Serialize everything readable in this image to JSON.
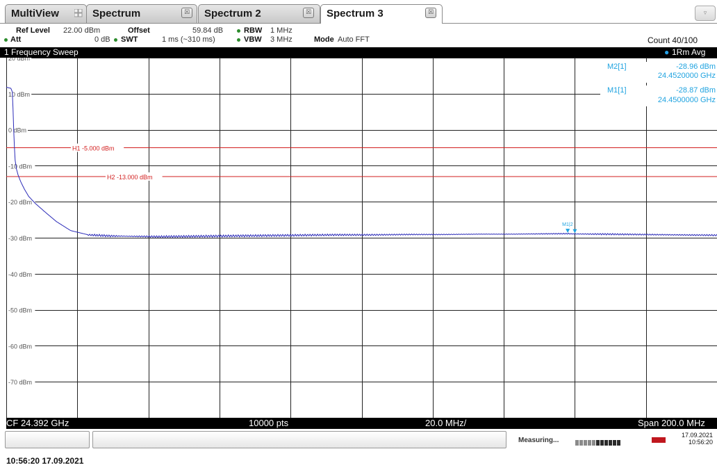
{
  "tabs": [
    {
      "label": "MultiView"
    },
    {
      "label": "Spectrum"
    },
    {
      "label": "Spectrum 2"
    },
    {
      "label": "Spectrum 3"
    }
  ],
  "settings": {
    "ref_level_label": "Ref Level",
    "ref_level_value": "22.00 dBm",
    "offset_label": "Offset",
    "offset_value": "59.84 dB",
    "rbw_label": "RBW",
    "rbw_value": "1 MHz",
    "att_label": "Att",
    "att_value": "0 dB",
    "swt_label": "SWT",
    "swt_value": "1 ms (~310 ms)",
    "vbw_label": "VBW",
    "vbw_value": "3 MHz",
    "mode_label": "Mode",
    "mode_value": "Auto FFT",
    "count": "Count 40/100"
  },
  "diagram": {
    "title": "1 Frequency Sweep",
    "trace_label": "1Rm Avg"
  },
  "markers": [
    {
      "name": "M2[1]",
      "level": "-28.96 dBm",
      "freq": "24.4520000 GHz"
    },
    {
      "name": "M1[1]",
      "level": "-28.87 dBm",
      "freq": "24.4500000 GHz"
    }
  ],
  "marker_tag": "M1|2",
  "lines": [
    {
      "label": "H1 -5.000 dBm",
      "level": -5
    },
    {
      "label": "H2 -13.000 dBm",
      "level": -13
    }
  ],
  "footer": {
    "cf": "CF 24.392 GHz",
    "pts": "10000 pts",
    "div": "20.0 MHz/",
    "span": "Span 200.0 MHz"
  },
  "status": {
    "measuring": "Measuring...",
    "date": "17.09.2021",
    "time": "10:56:20"
  },
  "timestamp": "10:56:20 17.09.2021",
  "colors": {
    "trace": "#2b2bb8",
    "limit_line": "#d21e1e",
    "marker": "#1fa3e0",
    "grid": "#222222"
  },
  "chart_data": {
    "type": "line",
    "title": "1 Frequency Sweep",
    "xlabel": "",
    "ylabel": "",
    "x_center_ghz": 24.392,
    "x_span_mhz": 200.0,
    "xlim_ghz": [
      24.292,
      24.492
    ],
    "ylim": [
      -80,
      20
    ],
    "y_ticks": [
      20,
      10,
      0,
      -10,
      -20,
      -30,
      -40,
      -50,
      -60,
      -70
    ],
    "y_tick_labels": [
      "20 dBm",
      "10 dBm",
      "0 dBm",
      "-10 dBm",
      "-20 dBm",
      "-30 dBm",
      "-40 dBm",
      "-50 dBm",
      "-60 dBm",
      "-70 dBm"
    ],
    "grid": true,
    "series": [
      {
        "x": [
          24.292,
          24.2933,
          24.2937,
          24.2939,
          24.2941,
          24.2943,
          24.2945,
          24.2949,
          24.2953,
          24.2961,
          24.2971,
          24.2983,
          24.3001,
          24.3025,
          24.3061,
          24.3101,
          24.3151,
          24.3211,
          24.3271,
          24.3351,
          24.3451,
          24.3551,
          24.3651,
          24.3751,
          24.3851,
          24.3951,
          24.4051,
          24.4151,
          24.4251,
          24.4351,
          24.4451,
          24.45,
          24.452,
          24.4601,
          24.4701,
          24.4801,
          24.4921
        ],
        "y": [
          11.8,
          11.5,
          10.5,
          6,
          0,
          -5,
          -8.5,
          -11,
          -12.5,
          -14.5,
          -16.5,
          -18.5,
          -20.4,
          -22.5,
          -25.5,
          -28,
          -29.2,
          -29.5,
          -29.6,
          -29.7,
          -29.6,
          -29.5,
          -29.4,
          -29.3,
          -29.2,
          -29.2,
          -29.1,
          -29.1,
          -29.0,
          -29.0,
          -28.9,
          -28.87,
          -28.96,
          -29.0,
          -29.1,
          -29.2,
          -29.3
        ]
      }
    ],
    "markers": [
      {
        "name": "M1",
        "x_ghz": 24.45,
        "y": -28.87
      },
      {
        "name": "M2",
        "x_ghz": 24.452,
        "y": -28.96
      }
    ],
    "hlines": [
      {
        "name": "H1",
        "y": -5
      },
      {
        "name": "H2",
        "y": -13
      }
    ]
  }
}
